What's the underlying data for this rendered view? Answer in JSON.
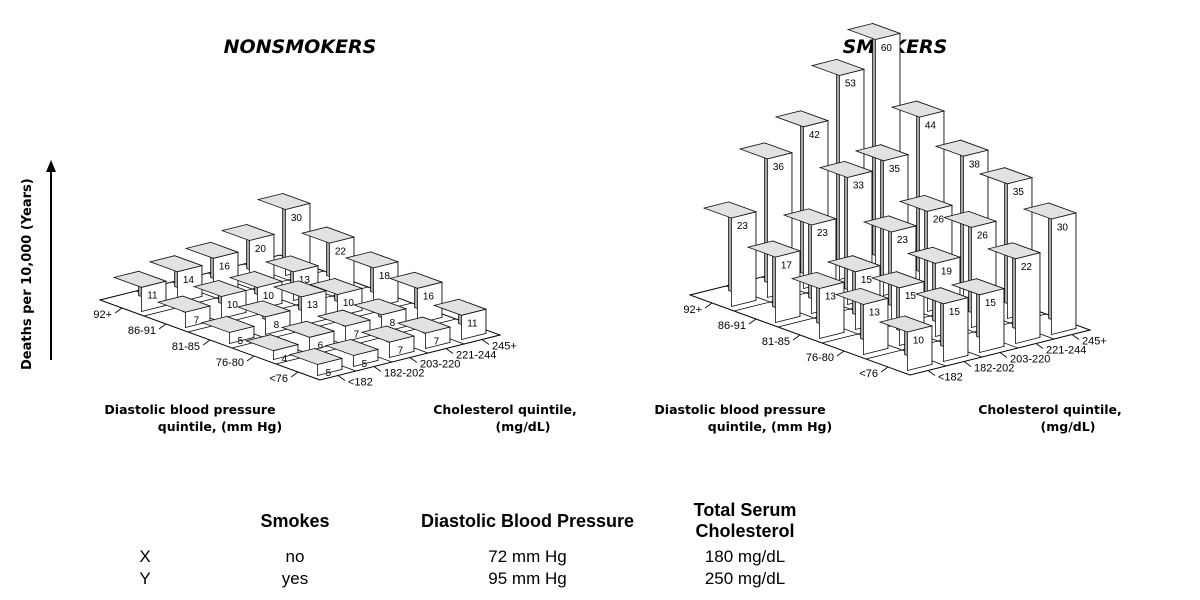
{
  "y_axis_title": "Deaths per 10,000 (Years)",
  "chart_data": [
    {
      "type": "bar",
      "title": "NONSMOKERS",
      "xlabel": "Diastolic blood pressure quintile, (mm Hg)",
      "ylabel": "Cholesterol quintile, (mg/dL)",
      "bp_categories": [
        "92+",
        "86-91",
        "81-85",
        "76-80",
        "<76"
      ],
      "chol_categories": [
        "<182",
        "182-202",
        "203-220",
        "221-244",
        "245+"
      ],
      "values": [
        [
          11,
          14,
          16,
          20,
          30
        ],
        [
          7,
          10,
          10,
          13,
          22
        ],
        [
          5,
          8,
          13,
          10,
          18
        ],
        [
          4,
          6,
          7,
          8,
          16
        ],
        [
          5,
          5,
          7,
          7,
          11
        ]
      ]
    },
    {
      "type": "bar",
      "title": "SMOKERS",
      "xlabel": "Diastolic blood pressure quintile, (mm Hg)",
      "ylabel": "Cholesterol quintile, (mg/dL)",
      "bp_categories": [
        "92+",
        "86-91",
        "81-85",
        "76-80",
        "<76"
      ],
      "chol_categories": [
        "<182",
        "182-202",
        "203-220",
        "221-244",
        "245+"
      ],
      "values": [
        [
          23,
          36,
          42,
          53,
          60
        ],
        [
          17,
          23,
          33,
          35,
          44
        ],
        [
          13,
          15,
          23,
          26,
          38
        ],
        [
          13,
          15,
          19,
          26,
          35
        ],
        [
          10,
          15,
          15,
          22,
          30
        ]
      ]
    }
  ],
  "table": {
    "headers": [
      "",
      "Smokes",
      "Diastolic Blood Pressure",
      "Total Serum Cholesterol"
    ],
    "rows": [
      [
        "X",
        "no",
        "72 mm Hg",
        "180 mg/dL"
      ],
      [
        "Y",
        "yes",
        "95 mm Hg",
        "250 mg/dL"
      ]
    ]
  }
}
